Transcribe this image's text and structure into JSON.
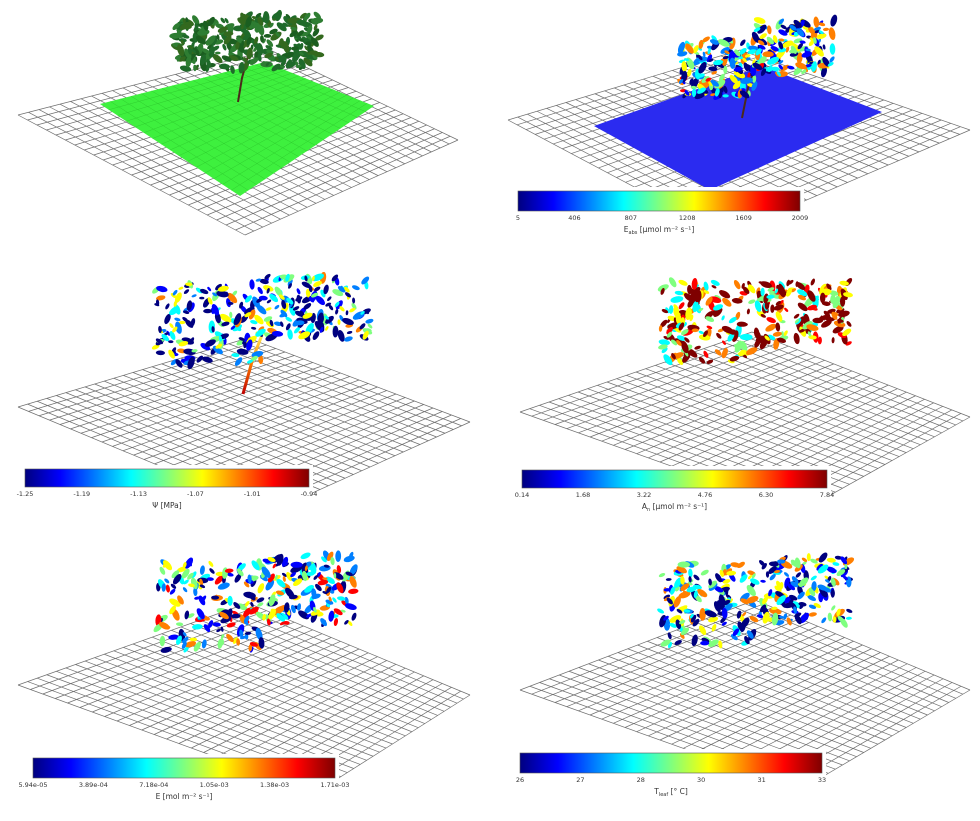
{
  "chart_data": [
    {
      "type": "heatmap",
      "panel": "leaf-area-plot",
      "surface_color": "#3ef03e",
      "colorbar": null
    },
    {
      "type": "heatmap",
      "panel": "absorbed-radiation-plot",
      "surface_color": "#2b2bf0",
      "colorbar": {
        "colormap": "jet",
        "ticks": [
          "5",
          "406",
          "807",
          "1208",
          "1609",
          "2009"
        ],
        "label_main": "E",
        "label_sub": "abs",
        "label_unit": " [μmol m⁻² s⁻¹]"
      }
    },
    {
      "type": "heatmap",
      "panel": "water-potential-plot",
      "surface_color": null,
      "colorbar": {
        "colormap": "jet",
        "ticks": [
          "-1.25",
          "-1.19",
          "-1.13",
          "-1.07",
          "-1.01",
          "-0.94"
        ],
        "label_main": "Ψ [MPa]",
        "label_sub": "",
        "label_unit": ""
      }
    },
    {
      "type": "heatmap",
      "panel": "net-photosynthesis-plot",
      "surface_color": null,
      "colorbar": {
        "colormap": "jet",
        "ticks": [
          "0.14",
          "1.68",
          "3.22",
          "4.76",
          "6.30",
          "7.84"
        ],
        "label_main": "A",
        "label_sub": "n",
        "label_unit": " [μmol m⁻² s⁻¹]"
      }
    },
    {
      "type": "heatmap",
      "panel": "transpiration-plot",
      "surface_color": null,
      "colorbar": {
        "colormap": "jet",
        "ticks": [
          "5.94e-05",
          "3.89e-04",
          "7.18e-04",
          "1.05e-03",
          "1.38e-03",
          "1.71e-03"
        ],
        "label_main": "E [mol m⁻² s⁻¹]",
        "label_sub": "",
        "label_unit": ""
      }
    },
    {
      "type": "heatmap",
      "panel": "leaf-temperature-plot",
      "surface_color": null,
      "colorbar": {
        "colormap": "jet",
        "ticks": [
          "26",
          "27",
          "28",
          "30",
          "31",
          "33"
        ],
        "label_main": "T",
        "label_sub": "leaf",
        "label_unit": " [° C]"
      }
    }
  ],
  "colors": {
    "grid_line": "#6f6f6f",
    "trunk_dark": "#4a2a1a",
    "foliage_green": "#1f6a2a",
    "jet": [
      "#00007f",
      "#0000ff",
      "#007fff",
      "#00ffff",
      "#7fff7f",
      "#ffff00",
      "#ff7f00",
      "#ff0000",
      "#7f0000"
    ]
  }
}
